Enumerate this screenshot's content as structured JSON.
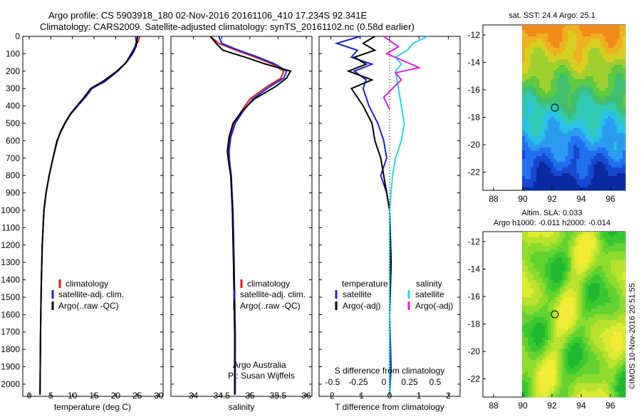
{
  "header": {
    "line1": "Argo profile: CS 5903918_180 02-Nov-2016 20161106_410 17.234S 92.341E",
    "line2": "Climatology: CARS2009. Satellite-adjusted climatology: synTS_20161102.nc (0.58d earlier)"
  },
  "colors": {
    "climatology": "#e01a1a",
    "satellite": "#1a22d8",
    "argo": "#000000",
    "salinity_sat": "#22d8e8",
    "salinity_argo": "#e020e0"
  },
  "depth_axis": {
    "ticks": [
      0,
      100,
      200,
      300,
      400,
      500,
      600,
      700,
      800,
      900,
      1000,
      1100,
      1200,
      1300,
      1400,
      1500,
      1600,
      1700,
      1800,
      1900,
      2000
    ],
    "range": [
      0,
      2070
    ]
  },
  "chart_data": [
    {
      "type": "line",
      "name": "temperature",
      "xlabel": "temperature (deg C)",
      "xlim": [
        -1.5,
        31
      ],
      "xticks": [
        0,
        5,
        10,
        15,
        20,
        25,
        30
      ],
      "ylim": [
        2070,
        0
      ],
      "legend": [
        "climatology",
        "satellite-adj. clim.",
        "Argo(..raw -QC)"
      ],
      "legend_placement": "lower-middle",
      "series": [
        {
          "name": "climatology",
          "color_key": "climatology",
          "x": [
            25.6,
            25.2,
            24.5,
            23.6,
            22.4,
            20.5,
            17.5,
            14.5,
            13.0,
            11.2,
            9.5,
            8.3,
            7.3,
            6.4,
            5.5,
            4.6,
            3.9,
            3.4,
            3.0,
            2.8,
            2.6,
            2.5
          ],
          "depth": [
            0,
            30,
            60,
            100,
            150,
            200,
            260,
            300,
            350,
            400,
            450,
            500,
            550,
            600,
            700,
            800,
            900,
            1000,
            1200,
            1400,
            1700,
            2060
          ]
        },
        {
          "name": "satellite-adj. clim.",
          "color_key": "satellite",
          "x": [
            24.6,
            24.8,
            24.5,
            23.6,
            22.4,
            20.5,
            17.5,
            14.5,
            13.0,
            11.2,
            9.5,
            8.3,
            7.3,
            6.4,
            5.5,
            4.6,
            3.9,
            3.4,
            3.0,
            2.8,
            2.6,
            2.5
          ],
          "depth": [
            0,
            30,
            60,
            100,
            150,
            200,
            260,
            300,
            350,
            400,
            450,
            500,
            550,
            600,
            700,
            800,
            900,
            1000,
            1200,
            1400,
            1700,
            2060
          ]
        },
        {
          "name": "Argo(..raw -QC)",
          "color_key": "argo",
          "x": [
            25.1,
            24.9,
            24.7,
            23.9,
            22.5,
            20.3,
            17.0,
            14.2,
            12.7,
            11.0,
            9.4,
            8.2,
            7.2,
            6.5,
            5.5,
            4.6,
            3.9,
            3.4,
            3.0,
            2.8,
            2.6,
            2.5
          ],
          "depth": [
            0,
            30,
            60,
            100,
            150,
            200,
            260,
            300,
            350,
            400,
            450,
            500,
            550,
            600,
            700,
            800,
            900,
            1000,
            1200,
            1400,
            1700,
            2060
          ]
        }
      ]
    },
    {
      "type": "line",
      "name": "salinity",
      "xlabel": "salinity",
      "xlim": [
        33.6,
        36.1
      ],
      "xticks": [
        34,
        34.5,
        35,
        35.5,
        36
      ],
      "ylim": [
        2070,
        0
      ],
      "legend": [
        "climatology",
        "satellite-adj. clim.",
        "Argo(..raw -QC)"
      ],
      "legend_placement": "lower-middle",
      "series": [
        {
          "name": "climatology",
          "color_key": "climatology",
          "x": [
            34.3,
            34.45,
            34.75,
            35.1,
            35.4,
            35.6,
            35.55,
            35.3,
            35.0,
            34.85,
            34.72,
            34.65,
            34.62,
            34.63,
            34.66,
            34.69,
            34.71,
            34.73,
            34.73
          ],
          "depth": [
            0,
            40,
            80,
            120,
            160,
            200,
            240,
            290,
            360,
            430,
            500,
            580,
            660,
            720,
            800,
            1000,
            1300,
            1700,
            2060
          ]
        },
        {
          "name": "satellite-adj. clim.",
          "color_key": "satellite",
          "x": [
            34.45,
            34.5,
            34.8,
            35.15,
            35.45,
            35.65,
            35.6,
            35.35,
            35.05,
            34.88,
            34.74,
            34.66,
            34.63,
            34.64,
            34.67,
            34.7,
            34.72,
            34.74,
            34.74
          ],
          "depth": [
            0,
            40,
            80,
            120,
            160,
            200,
            240,
            290,
            360,
            430,
            500,
            580,
            660,
            720,
            800,
            1000,
            1300,
            1700,
            2060
          ]
        },
        {
          "name": "Argo(..raw -QC)",
          "color_key": "argo",
          "x": [
            34.3,
            34.4,
            34.52,
            34.92,
            35.28,
            35.72,
            35.65,
            35.45,
            35.08,
            34.86,
            34.7,
            34.63,
            34.6,
            34.62,
            34.66,
            34.69,
            34.71,
            34.73,
            34.73
          ],
          "depth": [
            0,
            40,
            80,
            120,
            160,
            200,
            240,
            290,
            360,
            430,
            500,
            580,
            660,
            720,
            800,
            1000,
            1300,
            1700,
            2060
          ]
        }
      ]
    },
    {
      "type": "line",
      "name": "difference",
      "xlabel": "T difference from climatology",
      "xlabel_top": "S difference from climatology",
      "xlim": [
        -2.4,
        2.4
      ],
      "xticks": [
        -2,
        -1,
        0,
        1,
        2
      ],
      "sticks": [
        "-0.5",
        "-0.25",
        "0",
        "0.25",
        "0.5"
      ],
      "ylim": [
        2070,
        0
      ],
      "legend_temperature": {
        "title": "temperature",
        "items": [
          "satellite",
          "Argo(-adj)"
        ]
      },
      "legend_salinity": {
        "title": "salinity",
        "items": [
          "satellite",
          "Argo(-adj)"
        ]
      },
      "series": [
        {
          "name": "temperature satellite",
          "color_key": "satellite",
          "x": [
            -1.0,
            -1.8,
            -1.1,
            -1.3,
            -0.6,
            -1.2,
            -0.8,
            -0.9,
            -0.7,
            -0.4,
            -0.2,
            -0.1,
            -0.3,
            -0.1,
            0.0,
            0.05,
            0.0,
            0.05,
            0.0
          ],
          "depth": [
            0,
            40,
            80,
            120,
            160,
            200,
            250,
            300,
            400,
            500,
            600,
            700,
            800,
            900,
            1000,
            1300,
            1600,
            1900,
            2060
          ]
        },
        {
          "name": "temperature Argo(-adj)",
          "color_key": "argo",
          "x": [
            -0.5,
            -0.9,
            -0.5,
            -1.2,
            -0.8,
            -1.4,
            -0.6,
            -1.3,
            -0.9,
            -0.6,
            -0.5,
            -0.3,
            -0.2,
            -0.1,
            0.0,
            0.05,
            0.0,
            0.0,
            0.0
          ],
          "depth": [
            0,
            40,
            80,
            120,
            160,
            200,
            250,
            300,
            400,
            500,
            600,
            700,
            800,
            900,
            1000,
            1300,
            1600,
            1900,
            2060
          ]
        },
        {
          "name": "salinity satellite",
          "color_key": "salinity_sat",
          "x": [
            1.3,
            0.8,
            0.6,
            0.2,
            0.4,
            0.2,
            0.3,
            0.4,
            0.5,
            0.4,
            0.2,
            0.1,
            0.0,
            0.0,
            0.0
          ],
          "depth": [
            0,
            40,
            80,
            120,
            160,
            200,
            300,
            400,
            500,
            600,
            700,
            800,
            1000,
            1500,
            2060
          ]
        },
        {
          "name": "salinity Argo(-adj)",
          "color_key": "salinity_argo",
          "x": [
            -0.2,
            0.3,
            -0.1,
            0.6,
            1.0,
            0.2,
            0.4,
            -0.2,
            0.0
          ],
          "depth": [
            0,
            60,
            100,
            150,
            180,
            210,
            250,
            350,
            420
          ]
        }
      ]
    },
    {
      "type": "heatmap",
      "name": "sst-map",
      "title": "sat. SST: 24.4  Argo: 25.1",
      "xticks": [
        "88",
        "90",
        "92",
        "94",
        "96"
      ],
      "yticks": [
        "-12",
        "-14",
        "-16",
        "-18",
        "-20",
        "-22"
      ]
    },
    {
      "type": "heatmap",
      "name": "sla-map",
      "title1": "Altim. SLA: 0.033",
      "title2": "Argo h1000: -0.011  h2000: -0.014",
      "xticks": [
        "88",
        "90",
        "92",
        "94",
        "96"
      ],
      "yticks": [
        "-12",
        "-14",
        "-16",
        "-18",
        "-20",
        "-22"
      ]
    }
  ],
  "side_text": "©IMOS 10-Nov-2016 20:51:55",
  "credit": {
    "line1": "Argo Australia",
    "line2": "PI: Susan Wijffels"
  }
}
